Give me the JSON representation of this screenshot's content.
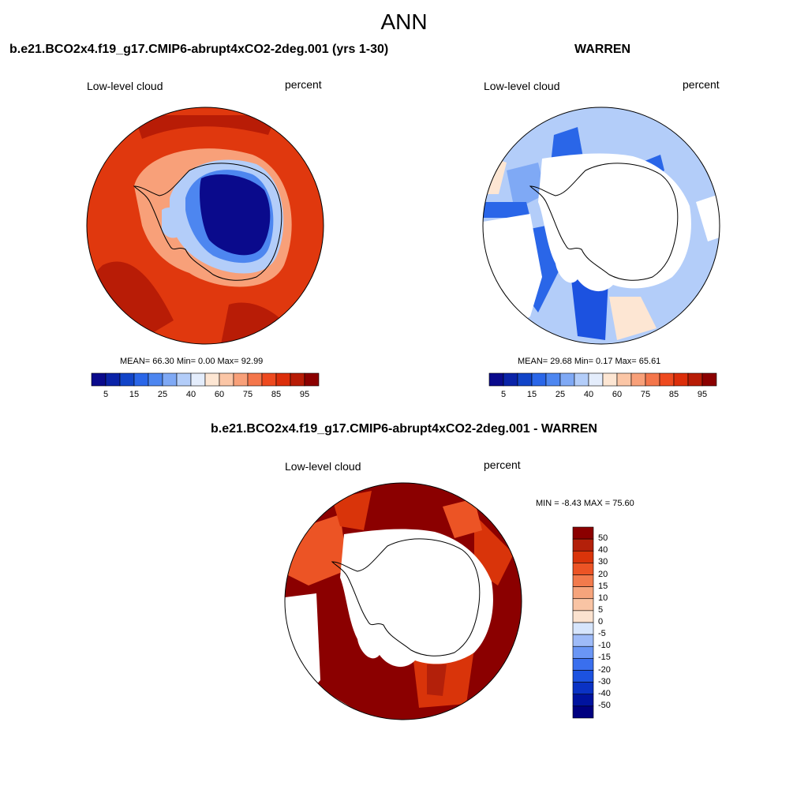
{
  "figure": {
    "title": "ANN",
    "colors": {
      "seq": [
        "#0a0a8c",
        "#0a23a8",
        "#1144c8",
        "#2a66e8",
        "#4d86f0",
        "#7fa9f5",
        "#b3cdf9",
        "#e4edfc",
        "#fde6d3",
        "#fbc6a6",
        "#f8a079",
        "#f4764b",
        "#ee4a1f",
        "#dc2e0a",
        "#b81c06",
        "#8b0000"
      ],
      "diff": [
        "#000080",
        "#00139f",
        "#0a32c4",
        "#1c52e0",
        "#3a6fee",
        "#6a96f5",
        "#9ebbf8",
        "#d6e5fc",
        "#fbe2cf",
        "#f9c4a4",
        "#f6a47c",
        "#f27a4c",
        "#ec5425",
        "#d9340a",
        "#b3200a",
        "#8b0000"
      ]
    }
  },
  "chart_data": [
    {
      "type": "heatmap",
      "panel": "test",
      "title": "b.e21.BCO2x4.f19_g17.CMIP6-abrupt4xCO2-2deg.001 (yrs 1-30)",
      "left_label": "Low-level cloud",
      "right_label": "percent",
      "stats_text": "MEAN=  66.30  Min=    0.00  Max=  92.99",
      "mean": 66.3,
      "min": 0.0,
      "max": 92.99,
      "colorbar_ticks": [
        "5",
        "15",
        "25",
        "40",
        "60",
        "75",
        "85",
        "95"
      ],
      "projection": "south-polar-stereographic"
    },
    {
      "type": "heatmap",
      "panel": "reference",
      "title": "WARREN",
      "left_label": "Low-level cloud",
      "right_label": "percent",
      "stats_text": "MEAN=  29.68  Min=    0.17  Max=  65.61",
      "mean": 29.68,
      "min": 0.17,
      "max": 65.61,
      "colorbar_ticks": [
        "5",
        "15",
        "25",
        "40",
        "60",
        "75",
        "85",
        "95"
      ],
      "projection": "south-polar-stereographic"
    },
    {
      "type": "heatmap",
      "panel": "difference",
      "title": "b.e21.BCO2x4.f19_g17.CMIP6-abrupt4xCO2-2deg.001 - WARREN",
      "left_label": "Low-level cloud",
      "right_label": "percent",
      "stats_text": "MIN =  -8.43 MAX =  75.60",
      "min": -8.43,
      "max": 75.6,
      "colorbar_ticks": [
        "50",
        "40",
        "30",
        "20",
        "15",
        "10",
        "5",
        "0",
        "-5",
        "-10",
        "-15",
        "-20",
        "-30",
        "-40",
        "-50"
      ],
      "projection": "south-polar-stereographic"
    }
  ]
}
